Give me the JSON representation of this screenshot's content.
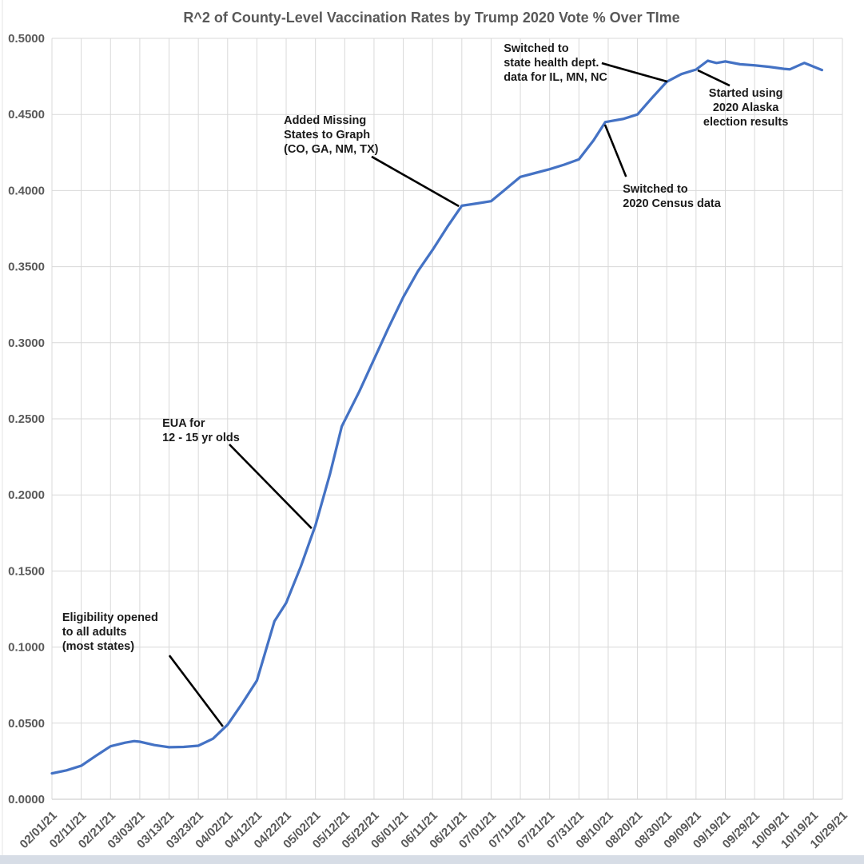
{
  "chart_data": {
    "type": "line",
    "title": "R^2 of County-Level Vaccination Rates by Trump 2020 Vote % Over TIme",
    "x_unit": "days since 02/01/2021",
    "x_tick_interval_days": 10,
    "x_range_days": [
      0,
      270
    ],
    "x_tick_labels": [
      "02/01/21",
      "02/11/21",
      "02/21/21",
      "03/03/21",
      "03/13/21",
      "03/23/21",
      "04/02/21",
      "04/12/21",
      "04/22/21",
      "05/02/21",
      "05/12/21",
      "05/22/21",
      "06/01/21",
      "06/11/21",
      "06/21/21",
      "07/01/21",
      "07/11/21",
      "07/21/21",
      "07/31/21",
      "08/10/21",
      "08/20/21",
      "08/30/21",
      "09/09/21",
      "09/19/21",
      "09/29/21",
      "10/09/21",
      "10/19/21",
      "10/29/21"
    ],
    "ylim": [
      0,
      0.5
    ],
    "y_tick_step": 0.05,
    "y_tick_labels": [
      "0.0000",
      "0.0500",
      "0.1000",
      "0.1500",
      "0.2000",
      "0.2500",
      "0.3000",
      "0.3500",
      "0.4000",
      "0.4500",
      "0.5000"
    ],
    "grid": true,
    "legend": "none",
    "series": [
      {
        "name": "R^2 of county-level vaccination rates vs Trump 2020 vote %",
        "color": "#4472C4",
        "points": [
          [
            0,
            0.017
          ],
          [
            5,
            0.019
          ],
          [
            10,
            0.022
          ],
          [
            15,
            0.0285
          ],
          [
            20,
            0.0348
          ],
          [
            25,
            0.0372
          ],
          [
            28,
            0.0382
          ],
          [
            30,
            0.0378
          ],
          [
            35,
            0.0356
          ],
          [
            40,
            0.0342
          ],
          [
            45,
            0.0344
          ],
          [
            50,
            0.0352
          ],
          [
            55,
            0.0398
          ],
          [
            60,
            0.049
          ],
          [
            65,
            0.063
          ],
          [
            70,
            0.078
          ],
          [
            76,
            0.117
          ],
          [
            80,
            0.129
          ],
          [
            85,
            0.153
          ],
          [
            90,
            0.18
          ],
          [
            95,
            0.214
          ],
          [
            99,
            0.245
          ],
          [
            105,
            0.268
          ],
          [
            110,
            0.289
          ],
          [
            115,
            0.31
          ],
          [
            120,
            0.33
          ],
          [
            125,
            0.347
          ],
          [
            130,
            0.361
          ],
          [
            135,
            0.376
          ],
          [
            140,
            0.39
          ],
          [
            145,
            0.3915
          ],
          [
            150,
            0.393
          ],
          [
            155,
            0.401
          ],
          [
            160,
            0.409
          ],
          [
            165,
            0.4115
          ],
          [
            170,
            0.414
          ],
          [
            175,
            0.417
          ],
          [
            180,
            0.4205
          ],
          [
            185,
            0.433
          ],
          [
            189,
            0.445
          ],
          [
            195,
            0.447
          ],
          [
            200,
            0.45
          ],
          [
            205,
            0.461
          ],
          [
            210,
            0.4715
          ],
          [
            215,
            0.4765
          ],
          [
            220,
            0.4795
          ],
          [
            224,
            0.4853
          ],
          [
            227,
            0.4838
          ],
          [
            230,
            0.4848
          ],
          [
            235,
            0.483
          ],
          [
            240,
            0.4823
          ],
          [
            245,
            0.4813
          ],
          [
            250,
            0.48
          ],
          [
            252,
            0.4796
          ],
          [
            257,
            0.4839
          ],
          [
            263,
            0.4792
          ]
        ]
      }
    ],
    "annotations": [
      {
        "id": "eligibility-all-adults",
        "lines": [
          "Eligibility opened",
          "to all adults",
          "(most states)"
        ],
        "align": "left",
        "text_day": 3.5,
        "text_value": 0.124,
        "leader": {
          "from_day": 40.1,
          "from_value": 0.0945,
          "to_day": 58.4,
          "to_value": 0.0478
        }
      },
      {
        "id": "eua-12-15-yr-olds",
        "lines": [
          "EUA for",
          "12 - 15 yr olds"
        ],
        "align": "left",
        "text_day": 37.7,
        "text_value": 0.2516,
        "leader": {
          "from_day": 60.6,
          "from_value": 0.2332,
          "to_day": 88.7,
          "to_value": 0.178
        }
      },
      {
        "id": "added-missing-states",
        "lines": [
          "Added Missing",
          "States to Graph",
          "(CO, GA, NM, TX)"
        ],
        "align": "left",
        "text_day": 79.2,
        "text_value": 0.4506,
        "leader": {
          "from_day": 109.2,
          "from_value": 0.4223,
          "to_day": 139.0,
          "to_value": 0.3897
        }
      },
      {
        "id": "state-health-dept-data",
        "lines": [
          "Switched to",
          "state health dept.",
          "data for IL, MN, NC"
        ],
        "align": "left",
        "text_day": 154.3,
        "text_value": 0.4979,
        "leader": {
          "from_day": 187.8,
          "from_value": 0.4837,
          "to_day": 210.2,
          "to_value": 0.4716
        }
      },
      {
        "id": "census-2020-data",
        "lines": [
          "Switched to",
          "2020 Census data"
        ],
        "align": "left",
        "text_day": 195.0,
        "text_value": 0.4054,
        "leader": {
          "from_day": 188.9,
          "from_value": 0.4433,
          "to_day": 196.1,
          "to_value": 0.4091
        }
      },
      {
        "id": "alaska-2020-results",
        "lines": [
          "Started using",
          "2020 Alaska",
          "election results"
        ],
        "align": "center",
        "text_day": 237.0,
        "text_value": 0.4685,
        "leader": {
          "from_day": 220.6,
          "from_value": 0.479,
          "to_day": 231.5,
          "to_value": 0.469
        }
      }
    ],
    "colors": {
      "line": "#4472C4",
      "grid": "#D9D9D9",
      "axis_line": "#C6C6C6",
      "axis_text": "#595959",
      "title_text": "#595959",
      "annotation_text": "#1A1A1A",
      "annotation_line": "#000000",
      "background": "#FFFFFF",
      "window_strip": "#D7DDE6"
    }
  }
}
